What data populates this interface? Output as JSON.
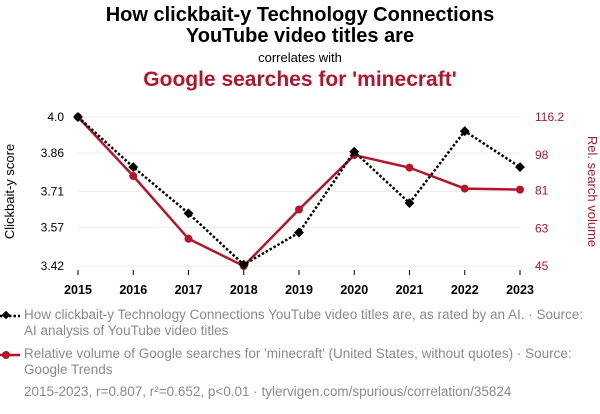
{
  "title": {
    "line1": "How clickbait-y Technology Connections",
    "line2": "YouTube video titles are",
    "connector": "correlates with",
    "second": "Google searches for 'minecraft'"
  },
  "colors": {
    "series1": "#000000",
    "series2": "#b5152b",
    "grid": "#eeeeee",
    "text_gray": "#8a8a8a"
  },
  "chart_data": {
    "type": "line",
    "x": [
      2015,
      2016,
      2017,
      2018,
      2019,
      2020,
      2021,
      2022,
      2023
    ],
    "xtick_labels": [
      "2015",
      "2016",
      "2017",
      "2018",
      "2019",
      "2020",
      "2021",
      "2022",
      "2023"
    ],
    "series": [
      {
        "name": "Clickbait-y score",
        "axis": "left",
        "style": "dotted",
        "marker": "diamond",
        "values": [
          4.0,
          3.805,
          3.625,
          3.425,
          3.55,
          3.865,
          3.665,
          3.945,
          3.805
        ]
      },
      {
        "name": "Rel. search volume",
        "axis": "right",
        "style": "solid",
        "marker": "circle",
        "values": [
          116.2,
          88,
          58,
          45,
          72,
          98,
          92,
          82,
          81.5
        ]
      }
    ],
    "y_left": {
      "label": "Clickbait-y score",
      "ylim": [
        3.42,
        4.0
      ],
      "ticks": [
        3.42,
        3.57,
        3.71,
        3.86,
        4.0
      ],
      "tick_labels": [
        "3.42",
        "3.57",
        "3.71",
        "3.86",
        "4.0"
      ]
    },
    "y_right": {
      "label": "Rel. search volume",
      "ylim": [
        45,
        116.2
      ],
      "ticks": [
        45,
        63,
        81,
        98,
        116.2
      ],
      "tick_labels": [
        "45",
        "63",
        "81",
        "98",
        "116.2"
      ]
    },
    "grid": true
  },
  "legend": {
    "series1": "How clickbait-y Technology Connections YouTube video titles are, as rated by an AI. · Source: AI analysis of YouTube video titles",
    "series2": "Relative volume of Google searches for 'minecraft' (United States, without quotes) · Source: Google Trends"
  },
  "footer": "2015-2023, r=0.807, r²=0.652, p<0.01 · tylervigen.com/spurious/correlation/35824"
}
